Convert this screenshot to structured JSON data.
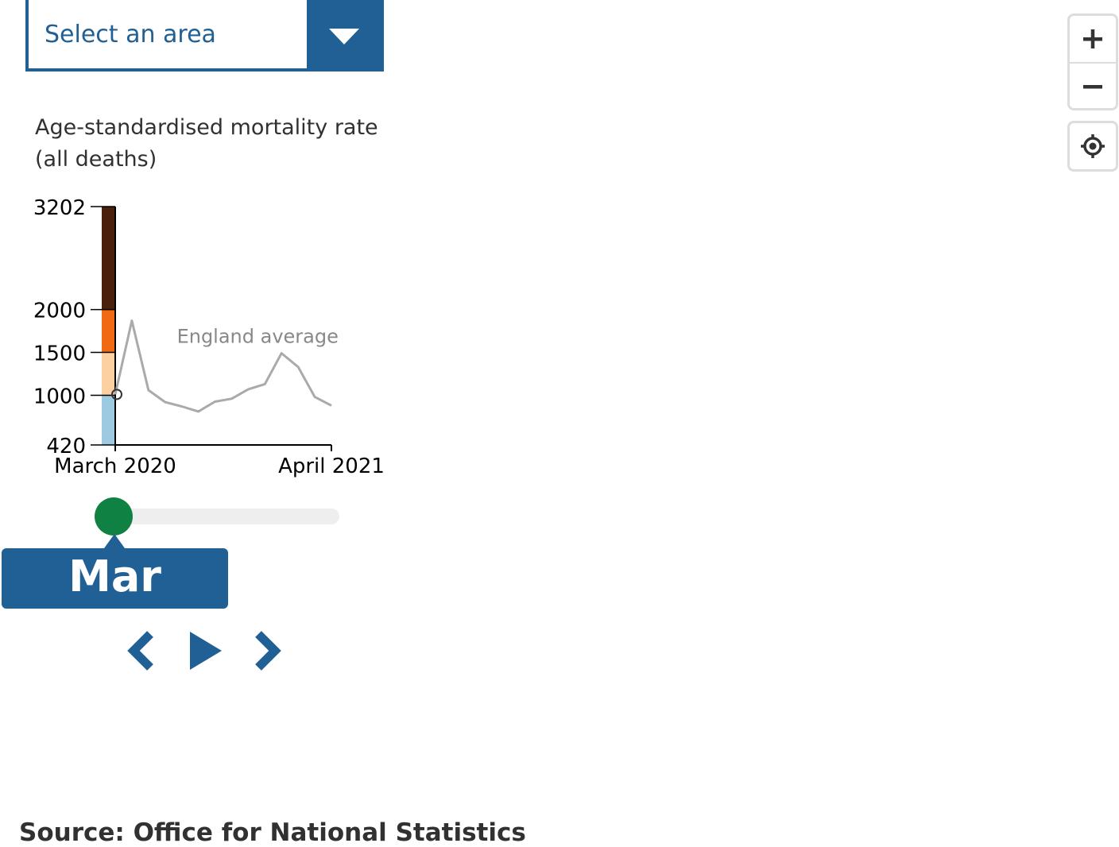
{
  "area_select": {
    "label": "Select an area",
    "icon": "chevron-down-icon"
  },
  "legend": {
    "title": "Age-standardised mortality rate\n(all deaths)",
    "title_line1": "Age-standardised mortality rate",
    "title_line2": "(all deaths)",
    "breaks": [
      420,
      1000,
      1500,
      2000,
      3202
    ],
    "colors": [
      "#9ecae1",
      "#fdd0a2",
      "#f16913",
      "#4a1f0c"
    ]
  },
  "chart_data": {
    "type": "line",
    "title": "Age-standardised mortality rate (all deaths)",
    "xlabel": "",
    "ylabel": "",
    "x_ticks": [
      "March 2020",
      "April 2021"
    ],
    "y_ticks": [
      420,
      1000,
      1500,
      2000,
      3202
    ],
    "ylim": [
      420,
      3202
    ],
    "series": [
      {
        "name": "England average",
        "x": [
          "2020-03",
          "2020-04",
          "2020-05",
          "2020-06",
          "2020-07",
          "2020-08",
          "2020-09",
          "2020-10",
          "2020-11",
          "2020-12",
          "2021-01",
          "2021-02",
          "2021-03",
          "2021-04"
        ],
        "values": [
          1010,
          1870,
          1060,
          920,
          870,
          810,
          925,
          960,
          1070,
          1130,
          1490,
          1330,
          980,
          880
        ],
        "color": "#aaaaaa"
      }
    ],
    "selected": {
      "x": "2020-03",
      "value": 1010
    },
    "legend_placement": "inline"
  },
  "timeline": {
    "current_label": "Mar 2020",
    "position_fraction": 0.0,
    "thumb_color": "#0f8243"
  },
  "controls": {
    "prev_icon": "chevron-left-icon",
    "play_icon": "play-icon",
    "next_icon": "chevron-right-icon"
  },
  "map_controls": {
    "zoom_in_icon": "plus-icon",
    "zoom_out_icon": "minus-icon",
    "locate_icon": "locate-icon"
  },
  "source": "Source: Office for National Statistics",
  "colors": {
    "accent": "#206095",
    "line": "#aaaaaa"
  }
}
